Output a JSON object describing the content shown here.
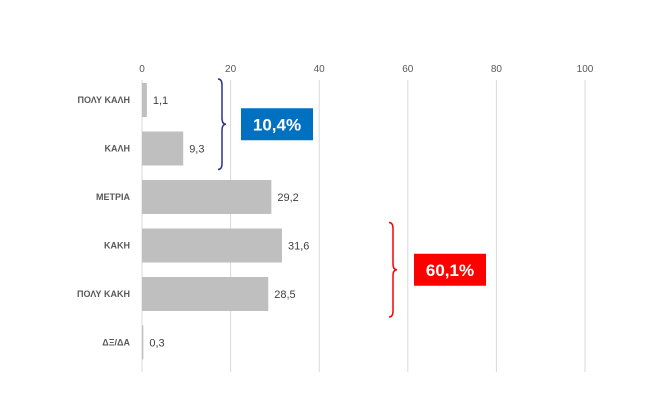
{
  "chart_data": {
    "type": "bar",
    "orientation": "horizontal",
    "categories": [
      "ΠΟΛΥ ΚΑΛΗ",
      "ΚΑΛΗ",
      "ΜΕΤΡΙΑ",
      "ΚΑΚΗ",
      "ΠΟΛΥ ΚΑΚΗ",
      "ΔΞ/ΔΑ"
    ],
    "values": [
      1.1,
      9.3,
      29.2,
      31.6,
      28.5,
      0.3
    ],
    "data_labels": [
      "1,1",
      "9,3",
      "29,2",
      "31,6",
      "28,5",
      "0,3"
    ],
    "xlim": [
      0,
      100
    ],
    "x_ticks": [
      0,
      20,
      40,
      60,
      80,
      100
    ],
    "x_tick_labels": [
      "0",
      "20",
      "40",
      "60",
      "80",
      "100"
    ],
    "x_axis_position": "top",
    "grid": "vertical",
    "bar_color": "#bfbfbf",
    "annotations": [
      {
        "text": "10,4%",
        "groups": [
          "ΠΟΛΥ ΚΑΛΗ",
          "ΚΑΛΗ"
        ],
        "box_color": "#0070c0",
        "brace_color": "#2e3192"
      },
      {
        "text": "60,1%",
        "groups": [
          "ΚΑΚΗ",
          "ΠΟΛΥ ΚΑΚΗ"
        ],
        "box_color": "#ff0000",
        "brace_color": "#ff0000"
      }
    ]
  }
}
